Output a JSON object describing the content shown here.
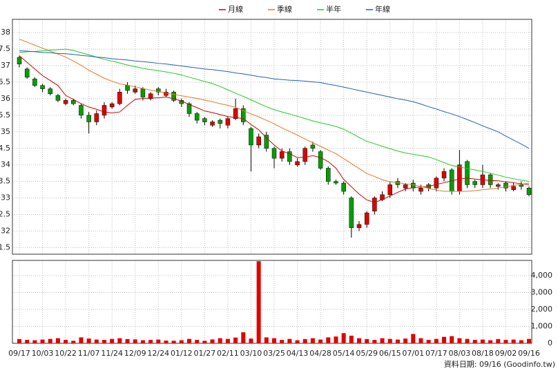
{
  "chart_data": {
    "type": "candlestick",
    "categories": [
      "09/17",
      null,
      null,
      "10/03",
      null,
      null,
      "10/22",
      null,
      null,
      "11/07",
      null,
      null,
      "11/24",
      null,
      null,
      "12/09",
      null,
      null,
      "12/24",
      null,
      null,
      "01/12",
      null,
      null,
      "01/27",
      null,
      null,
      "02/11",
      null,
      null,
      "03/10",
      null,
      null,
      "03/25",
      null,
      null,
      "04/13",
      null,
      null,
      "04/28",
      null,
      null,
      "05/14",
      null,
      null,
      "05/29",
      null,
      null,
      "06/15",
      null,
      null,
      "07/01",
      null,
      null,
      "07/17",
      null,
      null,
      "08/03",
      null,
      null,
      "08/18",
      null,
      null,
      "09/02",
      null,
      null,
      "09/16"
    ],
    "open": [
      37.25,
      36.9,
      36.6,
      36.4,
      36.3,
      36.1,
      35.85,
      35.95,
      35.8,
      35.5,
      35.3,
      35.5,
      35.75,
      35.85,
      36.4,
      36.2,
      36.3,
      36.0,
      36.3,
      36.1,
      36.2,
      35.95,
      35.85,
      35.55,
      35.4,
      35.2,
      35.35,
      35.2,
      35.4,
      35.7,
      35.1,
      34.6,
      34.9,
      34.5,
      34.2,
      34.4,
      34.0,
      34.1,
      34.6,
      34.4,
      33.9,
      33.5,
      33.45,
      33.0,
      32.1,
      32.2,
      32.6,
      32.95,
      33.1,
      33.5,
      33.3,
      33.45,
      33.2,
      33.4,
      33.3,
      33.6,
      33.85,
      33.2,
      34.1,
      33.5,
      33.4,
      33.7,
      33.35,
      33.45,
      33.25,
      33.4,
      33.3
    ],
    "high": [
      37.3,
      36.95,
      36.65,
      36.45,
      36.35,
      36.15,
      36.0,
      36.0,
      35.85,
      35.6,
      35.65,
      35.9,
      35.9,
      36.3,
      36.5,
      36.4,
      36.35,
      36.2,
      36.35,
      36.3,
      36.25,
      36.0,
      35.9,
      35.6,
      35.45,
      35.35,
      35.4,
      35.45,
      36.0,
      35.8,
      35.15,
      34.95,
      35.0,
      34.55,
      34.5,
      34.5,
      34.2,
      34.55,
      34.7,
      34.45,
      33.95,
      33.55,
      33.5,
      33.05,
      32.3,
      32.6,
      33.05,
      33.2,
      33.5,
      33.6,
      33.45,
      33.55,
      33.4,
      33.45,
      33.65,
      33.9,
      33.9,
      34.45,
      34.15,
      33.55,
      34.0,
      33.75,
      33.45,
      33.5,
      33.45,
      33.5,
      33.35
    ],
    "low": [
      36.95,
      36.6,
      36.35,
      36.2,
      36.1,
      35.9,
      35.8,
      35.8,
      35.4,
      34.95,
      35.2,
      35.4,
      35.7,
      35.8,
      36.15,
      36.15,
      35.95,
      35.95,
      36.1,
      36.05,
      35.9,
      35.75,
      35.45,
      35.25,
      35.2,
      35.15,
      35.1,
      35.1,
      35.35,
      35.2,
      33.8,
      34.5,
      34.4,
      33.9,
      34.1,
      34.0,
      33.95,
      34.0,
      34.4,
      33.85,
      33.4,
      33.4,
      33.1,
      31.8,
      32.0,
      32.1,
      32.5,
      32.9,
      33.0,
      33.3,
      33.2,
      33.2,
      33.1,
      33.2,
      33.2,
      33.5,
      33.1,
      33.1,
      33.3,
      33.3,
      33.3,
      33.3,
      33.25,
      33.2,
      33.2,
      33.25,
      33.05
    ],
    "close": [
      37.05,
      36.65,
      36.4,
      36.3,
      36.15,
      35.95,
      35.95,
      35.85,
      35.5,
      35.3,
      35.55,
      35.8,
      35.85,
      36.2,
      36.25,
      36.3,
      36.05,
      36.15,
      36.2,
      36.2,
      35.95,
      35.85,
      35.55,
      35.35,
      35.3,
      35.3,
      35.25,
      35.4,
      35.7,
      35.3,
      34.6,
      34.85,
      34.5,
      34.2,
      34.4,
      34.1,
      34.1,
      34.5,
      34.5,
      33.9,
      33.5,
      33.45,
      33.2,
      32.1,
      32.2,
      32.55,
      33.0,
      33.1,
      33.4,
      33.4,
      33.4,
      33.3,
      33.3,
      33.3,
      33.6,
      33.8,
      33.2,
      34.0,
      33.4,
      33.4,
      33.7,
      33.4,
      33.4,
      33.3,
      33.35,
      33.35,
      33.1
    ],
    "up_color": "#e00000",
    "down_color": "#00a000",
    "series": [
      {
        "name": "月線",
        "color": "#cc0000",
        "values": [
          37.3,
          37.1,
          36.9,
          36.7,
          36.55,
          36.4,
          36.1,
          35.98,
          35.85,
          35.75,
          35.68,
          35.6,
          35.57,
          35.6,
          35.8,
          35.98,
          36.01,
          36.02,
          36.03,
          36.05,
          36.0,
          35.93,
          35.83,
          35.73,
          35.63,
          35.58,
          35.52,
          35.46,
          35.43,
          35.4,
          35.22,
          35.06,
          34.82,
          34.6,
          34.42,
          34.34,
          34.22,
          34.23,
          34.28,
          34.22,
          34.1,
          33.9,
          33.56,
          33.34,
          33.12,
          32.94,
          32.87,
          32.95,
          33.06,
          33.17,
          33.27,
          33.31,
          33.33,
          33.35,
          33.41,
          33.46,
          33.52,
          33.57,
          33.6,
          33.57,
          33.55,
          33.53,
          33.52,
          33.49,
          33.46,
          33.43,
          33.4
        ]
      },
      {
        "name": "季線",
        "color": "#e87722",
        "values": [
          37.8,
          37.71,
          37.62,
          37.53,
          37.44,
          37.35,
          37.26,
          37.14,
          37.01,
          36.86,
          36.74,
          36.62,
          36.53,
          36.45,
          36.41,
          36.36,
          36.31,
          36.26,
          36.22,
          36.17,
          36.13,
          36.09,
          36.05,
          36.01,
          35.96,
          35.91,
          35.85,
          35.8,
          35.74,
          35.64,
          35.54,
          35.45,
          35.35,
          35.24,
          35.12,
          35.01,
          34.9,
          34.78,
          34.67,
          34.56,
          34.45,
          34.34,
          34.19,
          34.04,
          33.89,
          33.74,
          33.65,
          33.55,
          33.49,
          33.46,
          33.43,
          33.4,
          33.35,
          33.29,
          33.24,
          33.2,
          33.2,
          33.2,
          33.2,
          33.22,
          33.25,
          33.27,
          33.3,
          33.34,
          33.38,
          33.41,
          33.45
        ]
      },
      {
        "name": "半年",
        "color": "#22cc22",
        "values": [
          37.4,
          37.42,
          37.43,
          37.45,
          37.47,
          37.48,
          37.5,
          37.46,
          37.39,
          37.33,
          37.26,
          37.19,
          37.14,
          37.08,
          37.02,
          36.97,
          36.92,
          36.88,
          36.85,
          36.81,
          36.77,
          36.72,
          36.65,
          36.59,
          36.52,
          36.46,
          36.37,
          36.27,
          36.17,
          36.07,
          35.97,
          35.86,
          35.76,
          35.67,
          35.6,
          35.54,
          35.47,
          35.4,
          35.33,
          35.27,
          35.22,
          35.16,
          35.08,
          34.96,
          34.83,
          34.71,
          34.64,
          34.56,
          34.49,
          34.42,
          34.36,
          34.32,
          34.28,
          34.24,
          34.16,
          34.07,
          33.98,
          33.94,
          33.89,
          33.85,
          33.8,
          33.75,
          33.69,
          33.63,
          33.58,
          33.54,
          33.5
        ]
      },
      {
        "name": "年線",
        "color": "#1f5fbf",
        "values": [
          37.45,
          37.44,
          37.42,
          37.4,
          37.39,
          37.37,
          37.36,
          37.34,
          37.31,
          37.29,
          37.26,
          37.24,
          37.21,
          37.19,
          37.17,
          37.14,
          37.12,
          37.1,
          37.07,
          37.05,
          37.02,
          36.99,
          36.96,
          36.93,
          36.9,
          36.88,
          36.85,
          36.82,
          36.78,
          36.75,
          36.71,
          36.67,
          36.64,
          36.6,
          36.58,
          36.56,
          36.55,
          36.53,
          36.51,
          36.49,
          36.44,
          36.4,
          36.35,
          36.3,
          36.25,
          36.2,
          36.15,
          36.1,
          36.05,
          36.0,
          35.96,
          35.91,
          35.84,
          35.76,
          35.69,
          35.61,
          35.54,
          35.46,
          35.37,
          35.28,
          35.18,
          35.09,
          35.0,
          34.87,
          34.75,
          34.63,
          34.5
        ]
      }
    ],
    "ylim": [
      31.3,
      38.4
    ],
    "yticks": [
      31.5,
      32,
      32.5,
      33,
      33.5,
      34,
      34.5,
      35,
      35.5,
      36,
      36.5,
      37,
      37.5,
      38
    ],
    "grid": true,
    "volume": {
      "color": "#e00000",
      "values": [
        250,
        200,
        180,
        220,
        260,
        300,
        200,
        150,
        350,
        280,
        220,
        200,
        260,
        300,
        250,
        230,
        180,
        200,
        220,
        160,
        150,
        180,
        260,
        200,
        150,
        230,
        300,
        260,
        340,
        650,
        280,
        4850,
        350,
        300,
        200,
        260,
        180,
        250,
        300,
        220,
        350,
        400,
        600,
        450,
        300,
        250,
        200,
        300,
        260,
        220,
        280,
        550,
        300,
        200,
        260,
        380,
        420,
        300,
        260,
        200,
        220,
        180,
        250,
        200,
        220,
        180,
        260
      ],
      "ylim": [
        0,
        4900
      ],
      "yticks": [
        0,
        {
          "value": 1000,
          "label": "1,000"
        },
        {
          "value": 2000,
          "label": "2,000"
        },
        {
          "value": 3000,
          "label": "3,000"
        },
        {
          "value": 4000,
          "label": "4,000"
        }
      ]
    },
    "source": "資料日期: 09/16 (Goodinfo.tw)"
  }
}
